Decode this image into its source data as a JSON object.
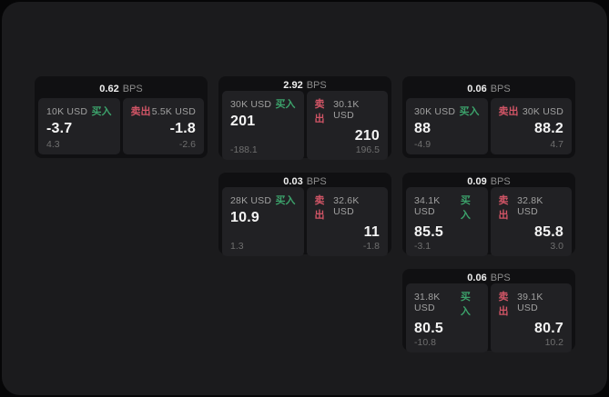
{
  "labels": {
    "bps": "BPS",
    "buy": "买入",
    "sell": "卖出"
  },
  "colors": {
    "buy_green": "#3ca26b",
    "sell_red": "#d15566",
    "card_bg": "#101012",
    "panel_bg": "#212124",
    "page_bg": "#1b1b1d"
  },
  "cards": [
    {
      "bps": "0.62",
      "buy": {
        "amount": "10K USD",
        "value": "-3.7",
        "sub": "4.3"
      },
      "sell": {
        "amount": "5.5K USD",
        "value": "-1.8",
        "sub": "-2.6"
      }
    },
    {
      "bps": "2.92",
      "buy": {
        "amount": "30K USD",
        "value": "201",
        "sub": "-188.1"
      },
      "sell": {
        "amount": "30.1K USD",
        "value": "210",
        "sub": "196.5"
      }
    },
    {
      "bps": "0.06",
      "buy": {
        "amount": "30K USD",
        "value": "88",
        "sub": "-4.9"
      },
      "sell": {
        "amount": "30K USD",
        "value": "88.2",
        "sub": "4.7"
      }
    },
    {
      "bps": "0.03",
      "buy": {
        "amount": "28K USD",
        "value": "10.9",
        "sub": "1.3"
      },
      "sell": {
        "amount": "32.6K USD",
        "value": "11",
        "sub": "-1.8"
      }
    },
    {
      "bps": "0.09",
      "buy": {
        "amount": "34.1K USD",
        "value": "85.5",
        "sub": "-3.1"
      },
      "sell": {
        "amount": "32.8K USD",
        "value": "85.8",
        "sub": "3.0"
      }
    },
    {
      "bps": "0.06",
      "buy": {
        "amount": "31.8K USD",
        "value": "80.5",
        "sub": "-10.8"
      },
      "sell": {
        "amount": "39.1K USD",
        "value": "80.7",
        "sub": "10.2"
      }
    }
  ]
}
